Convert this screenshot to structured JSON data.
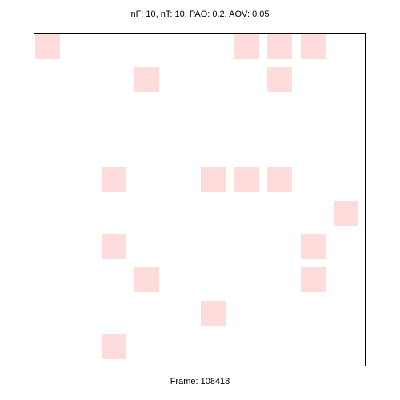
{
  "header": {
    "status_text": "nF: 10, nT: 10, PAO: 0.2, AOV: 0.05"
  },
  "footer": {
    "frame_label": "Frame: 108418"
  },
  "board": {
    "rows": 10,
    "cols": 10,
    "highlight_color": "#ffdcdc",
    "highlighted_cells": [
      [
        0,
        0
      ],
      [
        0,
        6
      ],
      [
        0,
        7
      ],
      [
        0,
        8
      ],
      [
        1,
        3
      ],
      [
        1,
        7
      ],
      [
        4,
        2
      ],
      [
        4,
        5
      ],
      [
        4,
        6
      ],
      [
        4,
        7
      ],
      [
        5,
        9
      ],
      [
        6,
        2
      ],
      [
        6,
        8
      ],
      [
        7,
        3
      ],
      [
        7,
        8
      ],
      [
        8,
        5
      ],
      [
        9,
        2
      ]
    ]
  }
}
